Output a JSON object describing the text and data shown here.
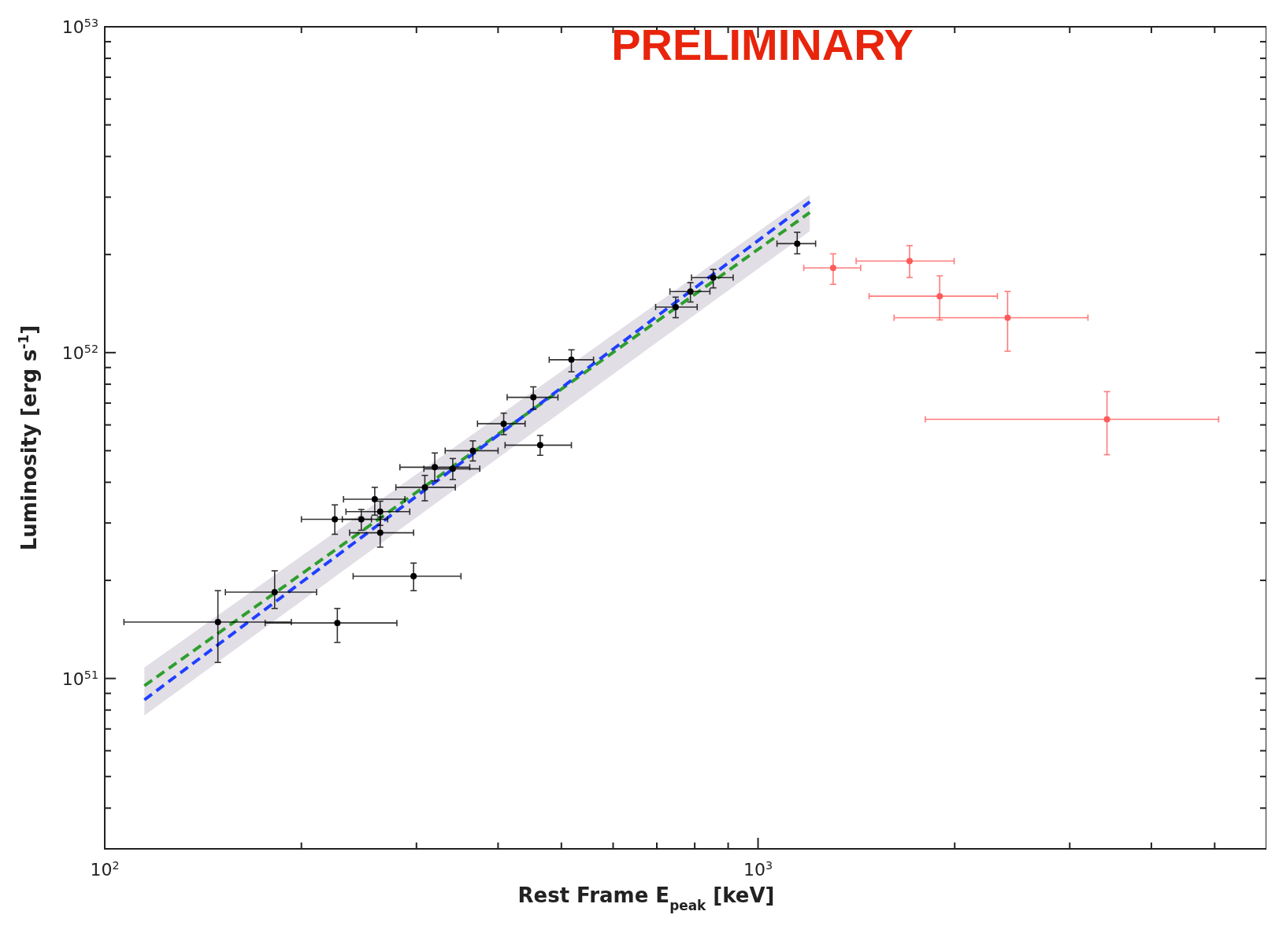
{
  "chart_data": {
    "type": "scatter",
    "xlabel": "Rest Frame E$_{peak}$ [keV]",
    "ylabel": "Luminosity [erg s$^{-1}$]",
    "annotations": [
      "PRELIMINARY"
    ],
    "log": "xy",
    "grid": false,
    "marker": "circle",
    "xlim": [
      100,
      6000
    ],
    "ylim": [
      3e+50,
      1e+53
    ],
    "xticks": [
      {
        "value": 100,
        "label": "10$^{2}$"
      },
      {
        "value": 200,
        "label": null
      },
      {
        "value": 300,
        "label": null
      },
      {
        "value": 400,
        "label": null
      },
      {
        "value": 500,
        "label": null
      },
      {
        "value": 600,
        "label": null
      },
      {
        "value": 700,
        "label": null
      },
      {
        "value": 800,
        "label": null
      },
      {
        "value": 900,
        "label": null
      },
      {
        "value": 1000,
        "label": "10$^{3}$"
      },
      {
        "value": 2000,
        "label": null
      },
      {
        "value": 3000,
        "label": null
      },
      {
        "value": 4000,
        "label": null
      },
      {
        "value": 5000,
        "label": null
      }
    ],
    "yticks": [
      {
        "value": 4e+50,
        "label": null
      },
      {
        "value": 5e+50,
        "label": null
      },
      {
        "value": 6e+50,
        "label": null
      },
      {
        "value": 7e+50,
        "label": null
      },
      {
        "value": 8e+50,
        "label": null
      },
      {
        "value": 9e+50,
        "label": null
      },
      {
        "value": 1e+51,
        "label": "10$^{51}$"
      },
      {
        "value": 2e+51,
        "label": null
      },
      {
        "value": 3e+51,
        "label": null
      },
      {
        "value": 4e+51,
        "label": null
      },
      {
        "value": 5e+51,
        "label": null
      },
      {
        "value": 6e+51,
        "label": null
      },
      {
        "value": 7e+51,
        "label": null
      },
      {
        "value": 8e+51,
        "label": null
      },
      {
        "value": 9e+51,
        "label": null
      },
      {
        "value": 1e+52,
        "label": "10$^{52}$"
      },
      {
        "value": 2e+52,
        "label": null
      },
      {
        "value": 3e+52,
        "label": null
      },
      {
        "value": 4e+52,
        "label": null
      },
      {
        "value": 5e+52,
        "label": null
      },
      {
        "value": 6e+52,
        "label": null
      },
      {
        "value": 7e+52,
        "label": null
      },
      {
        "value": 8e+52,
        "label": null
      },
      {
        "value": 9e+52,
        "label": null
      },
      {
        "value": 1e+53,
        "label": "10$^{53}$"
      }
    ],
    "series": [
      {
        "type": "line",
        "color": "#2e9e2e",
        "line_style": "dashed",
        "marker": "none",
        "x": [
          115,
          1200
        ],
        "values": [
          9.5e+50,
          2.69e+52
        ],
        "lower": [
          7.7e+50,
          2.36e+52
        ],
        "upper": [
          1.08e+51,
          3.05e+52
        ]
      },
      {
        "type": "line",
        "color": "#1f3fff",
        "line_style": "dashed",
        "marker": "none",
        "x": [
          115,
          1200
        ],
        "values": [
          8.6e+50,
          2.9e+52
        ]
      },
      {
        "color": "#000000",
        "x": [
          149,
          182,
          227,
          297,
          225,
          247,
          259,
          264,
          264,
          309,
          320,
          341,
          366,
          408,
          464,
          453,
          518,
          748,
          788,
          854,
          1148
        ],
        "values": [
          1.49e+51,
          1.84e+51,
          1.48e+51,
          2.06e+51,
          3.08e+51,
          3.08e+51,
          3.55e+51,
          2.8e+51,
          3.25e+51,
          3.86e+51,
          4.45e+51,
          4.4e+51,
          5e+51,
          6.05e+51,
          5.2e+51,
          7.29e+51,
          9.51e+51,
          1.38e+52,
          1.54e+52,
          1.7e+52,
          2.16e+52
        ],
        "errors": [
          [
            1.12e+51,
            1.86e+51
          ],
          [
            1.64e+51,
            2.14e+51
          ],
          [
            1.29e+51,
            1.64e+51
          ],
          [
            1.86e+51,
            2.26e+51
          ],
          [
            2.77e+51,
            3.41e+51
          ],
          [
            2.85e+51,
            3.3e+51
          ],
          [
            3.17e+51,
            3.86e+51
          ],
          [
            2.53e+51,
            3.13e+51
          ],
          [
            2.95e+51,
            3.5e+51
          ],
          [
            3.51e+51,
            4.2e+51
          ],
          [
            4.04e+51,
            4.92e+51
          ],
          [
            4.08e+51,
            4.73e+51
          ],
          [
            4.65e+51,
            5.36e+51
          ],
          [
            5.6e+51,
            6.52e+51
          ],
          [
            4.84e+51,
            5.57e+51
          ],
          [
            6.7e+51,
            7.85e+51
          ],
          [
            8.73e+51,
            1.02e+52
          ],
          [
            1.28e+52,
            1.48e+52
          ],
          [
            1.43e+52,
            1.64e+52
          ],
          [
            1.58e+52,
            1.8e+52
          ],
          [
            2.01e+52,
            2.34e+52
          ]
        ],
        "xerrors": [
          [
            107,
            193
          ],
          [
            153,
            211
          ],
          [
            176,
            280
          ],
          [
            240,
            351
          ],
          [
            200,
            256
          ],
          [
            231,
            271
          ],
          [
            232,
            288
          ],
          [
            237,
            297
          ],
          [
            234,
            293
          ],
          [
            279,
            344
          ],
          [
            283,
            362
          ],
          [
            308,
            375
          ],
          [
            332,
            400
          ],
          [
            372,
            440
          ],
          [
            410,
            518
          ],
          [
            413,
            494
          ],
          [
            479,
            560
          ],
          [
            697,
            807
          ],
          [
            733,
            844
          ],
          [
            791,
            916
          ],
          [
            1069,
            1225
          ]
        ]
      },
      {
        "color": "#ff5a5a",
        "x": [
          1303,
          1706,
          1897,
          2410,
          3421
        ],
        "values": [
          1.82e+52,
          1.91e+52,
          1.49e+52,
          1.28e+52,
          6.24e+51
        ],
        "errors": [
          [
            1.62e+52,
            2.01e+52
          ],
          [
            1.7e+52,
            2.13e+52
          ],
          [
            1.26e+52,
            1.72e+52
          ],
          [
            1.01e+52,
            1.54e+52
          ],
          [
            4.86e+51,
            7.59e+51
          ]
        ],
        "xerrors": [
          [
            1175,
            1436
          ],
          [
            1413,
            1996
          ],
          [
            1479,
            2325
          ],
          [
            1615,
            3199
          ],
          [
            1803,
            5070
          ]
        ]
      }
    ]
  }
}
